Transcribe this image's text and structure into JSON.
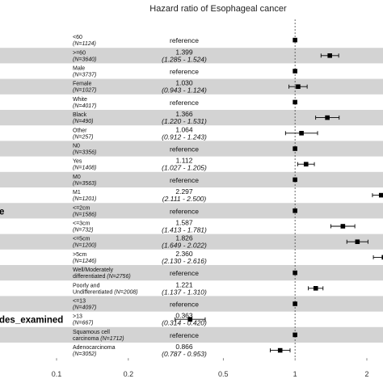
{
  "chart_data": {
    "type": "forest",
    "title": "Hazard ratio of Esophageal cancer",
    "x_scale": "log",
    "xlim": [
      0.08,
      2.3
    ],
    "x_ticks": [
      {
        "value": 0.1,
        "label": "0.1"
      },
      {
        "value": 0.2,
        "label": "0.2"
      },
      {
        "value": 0.5,
        "label": "0.5"
      },
      {
        "value": 1,
        "label": "1"
      },
      {
        "value": 2,
        "label": "2"
      }
    ],
    "reference_line": 1,
    "variable_labels": [
      {
        "label": "e",
        "row": 11
      },
      {
        "label": "des_examined",
        "row": 18
      }
    ],
    "rows": [
      {
        "level": "<60",
        "n": "(N=1124)",
        "hr": 1,
        "text": "reference",
        "ci_text": "",
        "lo": null,
        "hi": null,
        "shaded": false
      },
      {
        "level": ">=60",
        "n": "(N=3640)",
        "hr": 1.399,
        "text": "1.399",
        "ci_text": "(1.285 - 1.524)",
        "lo": 1.285,
        "hi": 1.524,
        "shaded": true
      },
      {
        "level": "Male",
        "n": "(N=3737)",
        "hr": 1,
        "text": "reference",
        "ci_text": "",
        "lo": null,
        "hi": null,
        "shaded": false
      },
      {
        "level": "Female",
        "n": "(N=1027)",
        "hr": 1.03,
        "text": "1.030",
        "ci_text": "(0.943 - 1.124)",
        "lo": 0.943,
        "hi": 1.124,
        "shaded": true
      },
      {
        "level": "White",
        "n": "(N=4017)",
        "hr": 1,
        "text": "reference",
        "ci_text": "",
        "lo": null,
        "hi": null,
        "shaded": false
      },
      {
        "level": "Black",
        "n": "(N=490)",
        "hr": 1.366,
        "text": "1.366",
        "ci_text": "(1.220 - 1.531)",
        "lo": 1.22,
        "hi": 1.531,
        "shaded": true
      },
      {
        "level": "Other",
        "n": "(N=257)",
        "hr": 1.064,
        "text": "1.064",
        "ci_text": "(0.912 - 1.243)",
        "lo": 0.912,
        "hi": 1.243,
        "shaded": false
      },
      {
        "level": "N0",
        "n": "(N=3356)",
        "hr": 1,
        "text": "reference",
        "ci_text": "",
        "lo": null,
        "hi": null,
        "shaded": true
      },
      {
        "level": "Yes",
        "n": "(N=1408)",
        "hr": 1.112,
        "text": "1.112",
        "ci_text": "(1.027 - 1.205)",
        "lo": 1.027,
        "hi": 1.205,
        "shaded": false
      },
      {
        "level": "M0",
        "n": "(N=3563)",
        "hr": 1,
        "text": "reference",
        "ci_text": "",
        "lo": null,
        "hi": null,
        "shaded": true
      },
      {
        "level": "M1",
        "n": "(N=1201)",
        "hr": 2.297,
        "text": "2.297",
        "ci_text": "(2.111 - 2.500)",
        "lo": 2.111,
        "hi": 2.5,
        "shaded": false
      },
      {
        "level": "<=2cm",
        "n": "(N=1586)",
        "hr": 1,
        "text": "reference",
        "ci_text": "",
        "lo": null,
        "hi": null,
        "shaded": true
      },
      {
        "level": "<=3cm",
        "n": "(N=732)",
        "hr": 1.587,
        "text": "1.587",
        "ci_text": "(1.413 - 1.781)",
        "lo": 1.413,
        "hi": 1.781,
        "shaded": false
      },
      {
        "level": "<=5cm",
        "n": "(N=1200)",
        "hr": 1.826,
        "text": "1.826",
        "ci_text": "(1.649 - 2.022)",
        "lo": 1.649,
        "hi": 2.022,
        "shaded": true
      },
      {
        "level": ">5cm",
        "n": "(N=1246)",
        "hr": 2.36,
        "text": "2.360",
        "ci_text": "(2.130 - 2.616)",
        "lo": 2.13,
        "hi": 2.616,
        "shaded": false
      },
      {
        "level": "Well/Moderately differentiated",
        "n": "(N=2756)",
        "hr": 1,
        "text": "reference",
        "ci_text": "",
        "lo": null,
        "hi": null,
        "shaded": true
      },
      {
        "level": "Poorly and Undifferentiated",
        "n": "(N=2008)",
        "hr": 1.221,
        "text": "1.221",
        "ci_text": "(1.137 - 1.310)",
        "lo": 1.137,
        "hi": 1.31,
        "shaded": false
      },
      {
        "level": "<=13",
        "n": "(N=4097)",
        "hr": 1,
        "text": "reference",
        "ci_text": "",
        "lo": null,
        "hi": null,
        "shaded": true
      },
      {
        "level": ">13",
        "n": "(N=667)",
        "hr": 0.363,
        "text": "0.363",
        "ci_text": "(0.314 - 0.420)",
        "lo": 0.314,
        "hi": 0.42,
        "shaded": false
      },
      {
        "level": "Squamous cell carcinoma",
        "n": "(N=1712)",
        "hr": 1,
        "text": "reference",
        "ci_text": "",
        "lo": null,
        "hi": null,
        "shaded": true
      },
      {
        "level": "Adenocarcinoma",
        "n": "(N=3052)",
        "hr": 0.866,
        "text": "0.866",
        "ci_text": "(0.787 - 0.953)",
        "lo": 0.787,
        "hi": 0.953,
        "shaded": false
      }
    ]
  }
}
